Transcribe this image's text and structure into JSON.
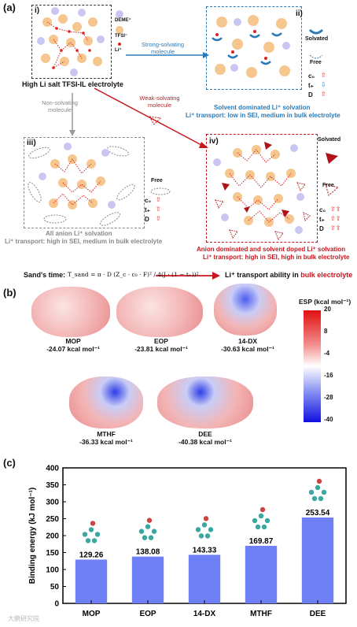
{
  "panel_a": {
    "label": "(a)",
    "i": {
      "tag": "i)",
      "legend": [
        "DEME⁺",
        "TFSI⁻",
        "Li⁺"
      ],
      "caption": "High Li salt TFSI-IL electrolyte"
    },
    "ii": {
      "tag": "ii)",
      "legend_solvated": "Solvated",
      "legend_free": "Free",
      "props": [
        "c₀",
        "t₊",
        "D"
      ],
      "title": "Solvent dominated Li⁺ solvation",
      "transport": "Li⁺ transport: low in SEI, medium in bulk electrolyte"
    },
    "iii": {
      "tag": "iii)",
      "legend_free": "Free",
      "props": [
        "c₀",
        "t₊",
        "D"
      ],
      "title": "All anion Li⁺ solvation",
      "transport": "Li⁺ transport: high in SEI, medium in bulk electrolyte"
    },
    "iv": {
      "tag": "iv)",
      "legend_solvated": "Solvated",
      "legend_free": "Free",
      "props": [
        "c₀",
        "t₊",
        "D"
      ],
      "title": "Anion dominated and solvent doped  Li⁺ solvation",
      "transport": "Li⁺ transport: high in SEI, high in bulk electrolyte"
    },
    "arrow_strong": "Strong-solvating molecule",
    "arrow_non": "Non-solvating molecule",
    "arrow_weak": "Weak-solvating molecule",
    "sand_label": "Sand's time:",
    "sand_formula": "T_sand = π · D (Z_c · c₀ · F)² / 4(J · (1 − t₊))²",
    "sand_result_prefix": "Li⁺ transport ability in ",
    "sand_result_em": "bulk electrolyte"
  },
  "panel_b": {
    "label": "(b)",
    "molecules": [
      {
        "name": "MOP",
        "energy": "-24.07 kcal mol⁻¹"
      },
      {
        "name": "EOP",
        "energy": "-23.81 kcal mol⁻¹"
      },
      {
        "name": "14-DX",
        "energy": "-30.63 kcal mol⁻¹"
      },
      {
        "name": "MTHF",
        "energy": "-36.33 kcal mol⁻¹"
      },
      {
        "name": "DEE",
        "energy": "-40.38 kcal mol⁻¹"
      }
    ],
    "colorbar": {
      "title": "ESP (kcal mol⁻¹)",
      "ticks": [
        "20",
        "8",
        "-4",
        "-16",
        "-28",
        "-40"
      ]
    }
  },
  "panel_c": {
    "label": "(c)"
  },
  "chart_data": {
    "type": "bar",
    "categories": [
      "MOP",
      "EOP",
      "14-DX",
      "MTHF",
      "DEE"
    ],
    "values": [
      129.26,
      138.08,
      143.33,
      169.87,
      253.54
    ],
    "value_labels": [
      "129.26",
      "138.08",
      "143.33",
      "169.87",
      "253.54"
    ],
    "ylabel": "Binding energy (kJ mol⁻¹)",
    "ylim": [
      0,
      400
    ],
    "yticks": [
      0,
      50,
      100,
      150,
      200,
      250,
      300,
      350,
      400
    ],
    "grid": false,
    "bar_color": "#6f7ff5"
  },
  "watermark": "大鹏研究院"
}
